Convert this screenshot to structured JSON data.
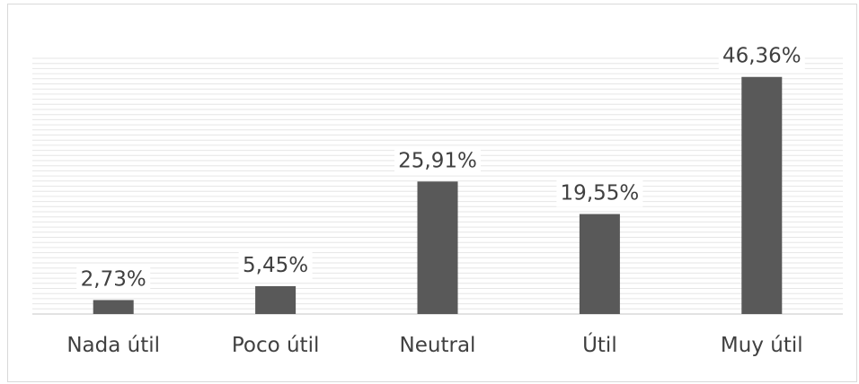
{
  "chart_data": {
    "type": "bar",
    "categories": [
      "Nada útil",
      "Poco útil",
      "Neutral",
      "Útil",
      "Muy útil"
    ],
    "values": [
      2.73,
      5.45,
      25.91,
      19.55,
      46.36
    ],
    "data_labels": [
      "2,73%",
      "5,45%",
      "25,91%",
      "19,55%",
      "46,36%"
    ],
    "title": "",
    "xlabel": "",
    "ylabel": "",
    "ylim": [
      0,
      50
    ],
    "grid": true,
    "legend": "none",
    "colors": {
      "bar": "#595959",
      "grid": "#d9d9d9",
      "text": "#404040"
    }
  }
}
